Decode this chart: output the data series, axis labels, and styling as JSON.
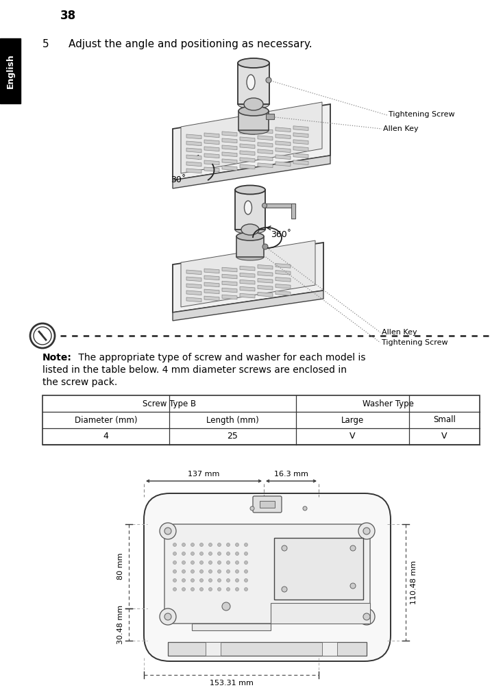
{
  "page_number": "38",
  "language_label": "English",
  "step_number": "5",
  "step_text": "Adjust the angle and positioning as necessary.",
  "note_bold": "Note:",
  "note_line1": " The appropriate type of screw and washer for each model is",
  "note_line2": "listed in the table below. 4 mm diameter screws are enclosed in",
  "note_line3": "the screw pack.",
  "table_headers_row1": [
    "Screw Type B",
    "Washer Type"
  ],
  "table_headers_row2": [
    "Diameter (mm)",
    "Length (mm)",
    "Large",
    "Small"
  ],
  "table_data": [
    "4",
    "25",
    "V",
    "V"
  ],
  "label_tightening_screw_top": "Tightening Screw",
  "label_allen_key_top": "Allen Key",
  "label_allen_key_bottom": "Allen Key",
  "label_tightening_screw_bottom": "Tightening Screw",
  "angle_top": "30˚",
  "angle_bottom": "360˚",
  "dim_137mm": "137 mm",
  "dim_163mm": "16.3 mm",
  "dim_80mm": "80 mm",
  "dim_3048mm": "30.48 mm",
  "dim_15331mm": "153.31 mm",
  "dim_11048mm": "110.48 mm",
  "bg_color": "#ffffff",
  "text_color": "#000000",
  "sidebar_bg": "#000000",
  "sidebar_text": "#ffffff",
  "dashed_color": "#777777",
  "table_border_color": "#000000",
  "draw_color": "#555555",
  "light_gray": "#e0e0e0",
  "mid_gray": "#c0c0c0",
  "dark_gray": "#888888"
}
